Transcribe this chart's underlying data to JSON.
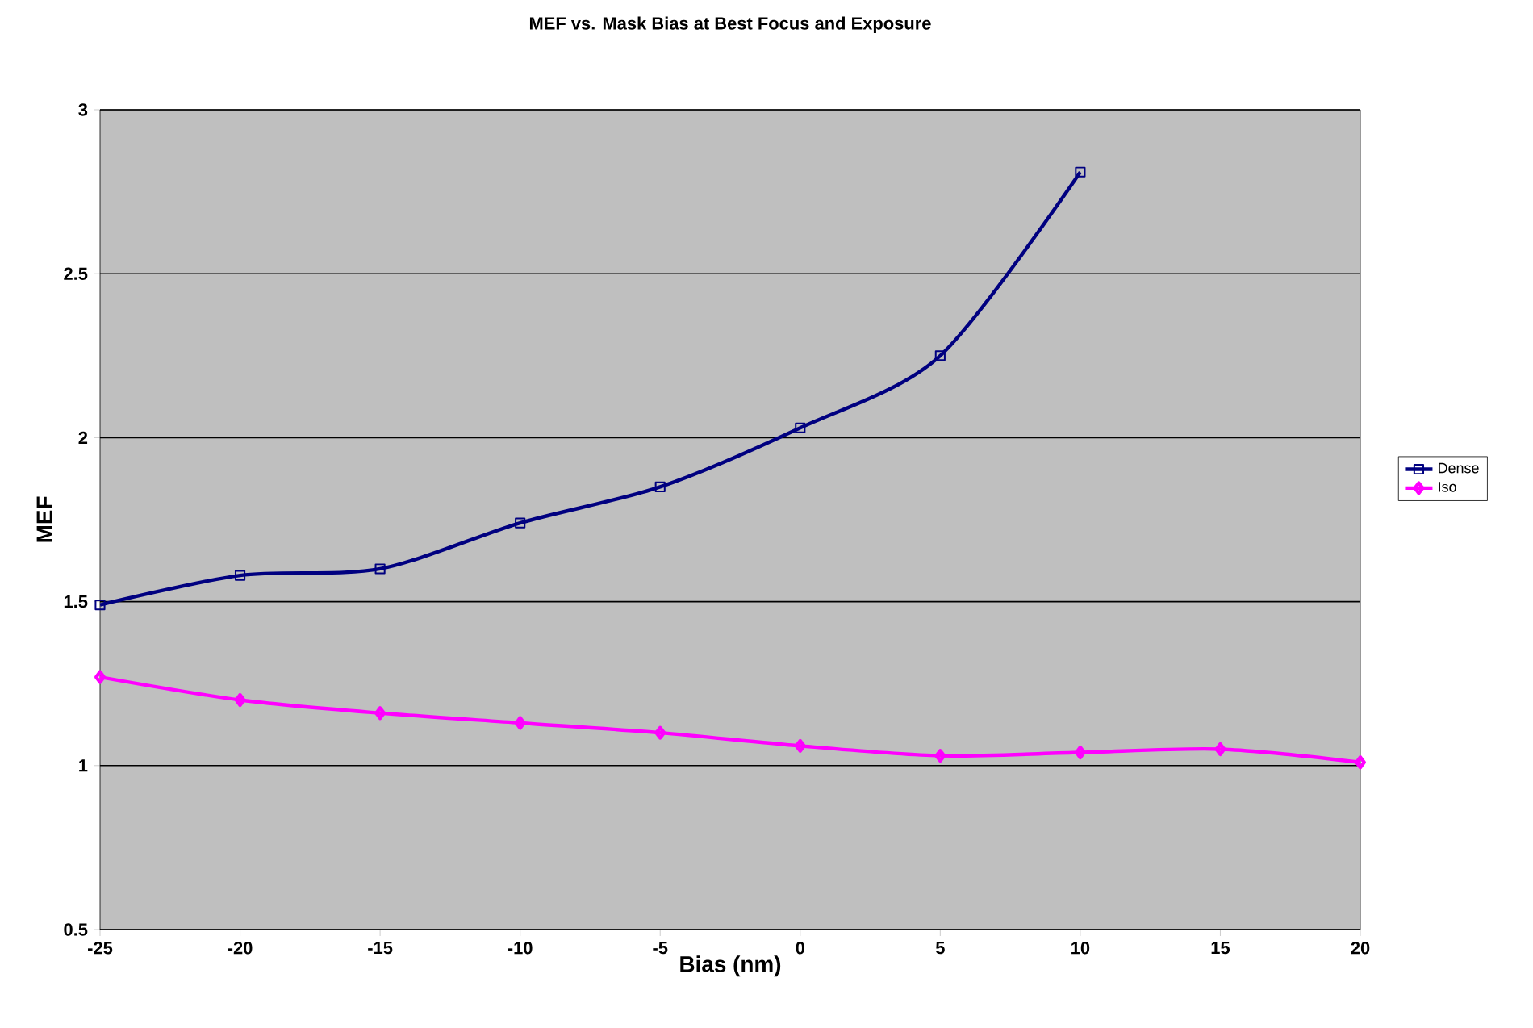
{
  "chart_data": {
    "type": "line",
    "title": "MEF vs. Mask Bias at Best Focus and Exposure",
    "xlabel": "Bias (nm)",
    "ylabel": "MEF",
    "x": [
      -25,
      -20,
      -15,
      -10,
      -5,
      0,
      5,
      10,
      15,
      20
    ],
    "series": [
      {
        "name": "Dense",
        "color": "#000080",
        "marker": "square",
        "values": [
          1.49,
          1.58,
          1.6,
          1.74,
          1.85,
          2.03,
          2.25,
          2.81,
          null,
          null
        ]
      },
      {
        "name": "Iso",
        "color": "#ff00ff",
        "marker": "diamond",
        "values": [
          1.27,
          1.2,
          1.16,
          1.13,
          1.1,
          1.06,
          1.03,
          1.04,
          1.05,
          1.01
        ]
      }
    ],
    "xlim": [
      -25,
      20
    ],
    "xticks": [
      -25,
      -20,
      -15,
      -10,
      -5,
      0,
      5,
      10,
      15,
      20
    ],
    "ylim": [
      0.5,
      3
    ],
    "yticks": [
      0.5,
      1,
      1.5,
      2,
      2.5,
      3
    ],
    "grid": "y",
    "legend": "right",
    "line_style": "solid"
  }
}
